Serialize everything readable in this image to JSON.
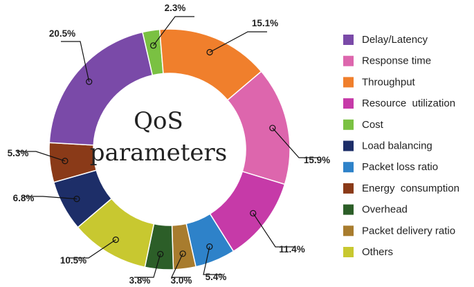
{
  "chart_data": {
    "type": "pie",
    "title": "QoS parameters",
    "series": [
      {
        "values": [
          {
            "label": "Cost",
            "value": 2.3,
            "display": "2.3%",
            "color": "#7ac142"
          },
          {
            "label": "Throughput",
            "value": 15.1,
            "display": "15.1%",
            "color": "#f07f2c"
          },
          {
            "label": "Response time",
            "value": 15.9,
            "display": "15.9%",
            "color": "#dd66ad"
          },
          {
            "label": "Resource  utilization",
            "value": 11.4,
            "display": "11.4%",
            "color": "#c63aa8"
          },
          {
            "label": "Packet loss ratio",
            "value": 5.4,
            "display": "5.4%",
            "color": "#2e82c9"
          },
          {
            "label": "Packet delivery ratio",
            "value": 3.0,
            "display": "3.0%",
            "color": "#a87c2e"
          },
          {
            "label": "Overhead",
            "value": 3.8,
            "display": "3.8%",
            "color": "#2c5e28"
          },
          {
            "label": "Others",
            "value": 10.5,
            "display": "10.5%",
            "color": "#c8c830"
          },
          {
            "label": "Load balancing",
            "value": 6.8,
            "display": "6.8%",
            "color": "#1d2e68"
          },
          {
            "label": "Energy  consumption",
            "value": 5.3,
            "display": "5.3%",
            "color": "#8a3a18"
          },
          {
            "label": "Delay/Latency",
            "value": 20.5,
            "display": "20.5%",
            "color": "#7a4aa8"
          }
        ]
      }
    ],
    "legend": {
      "position": "right",
      "order": [
        "Delay/Latency",
        "Response time",
        "Throughput",
        "Resource  utilization",
        "Cost",
        "Load balancing",
        "Packet loss ratio",
        "Energy  consumption",
        "Overhead",
        "Packet delivery ratio",
        "Others"
      ]
    },
    "center_label": [
      "QoS",
      "parameters"
    ]
  }
}
